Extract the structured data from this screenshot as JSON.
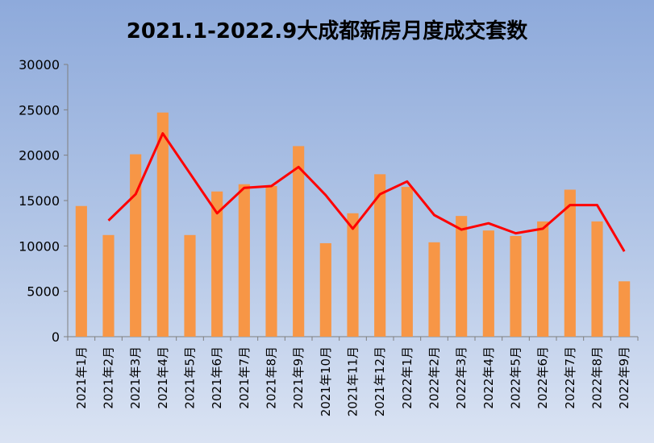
{
  "chart_data": {
    "type": "bar",
    "title": "2021.1-2022.9大成都新房月度成交套数",
    "xlabel": "",
    "ylabel": "",
    "ylim": [
      0,
      30000
    ],
    "yticks": [
      0,
      5000,
      10000,
      15000,
      20000,
      25000,
      30000
    ],
    "grid": false,
    "categories": [
      "2021年1月",
      "2021年2月",
      "2021年3月",
      "2021年4月",
      "2021年5月",
      "2021年6月",
      "2021年7月",
      "2021年8月",
      "2021年9月",
      "2021年10月",
      "2021年11月",
      "2021年12月",
      "2022年1月",
      "2022年2月",
      "2022年3月",
      "2022年4月",
      "2022年5月",
      "2022年6月",
      "2022年7月",
      "2022年8月",
      "2022年9月"
    ],
    "series": [
      {
        "type": "bar",
        "color": "#f79646",
        "values": [
          14400,
          11200,
          20100,
          24700,
          11200,
          16000,
          16800,
          16600,
          21000,
          10300,
          13600,
          17900,
          16500,
          10400,
          13300,
          11700,
          11100,
          12700,
          16200,
          12700,
          6100
        ]
      },
      {
        "type": "line",
        "color": "#ff0000",
        "values": [
          null,
          12800,
          15700,
          22400,
          18000,
          13600,
          16400,
          16600,
          18700,
          15600,
          11900,
          15700,
          17100,
          13400,
          11800,
          12500,
          11400,
          11900,
          14500,
          14500,
          9400
        ]
      }
    ]
  }
}
